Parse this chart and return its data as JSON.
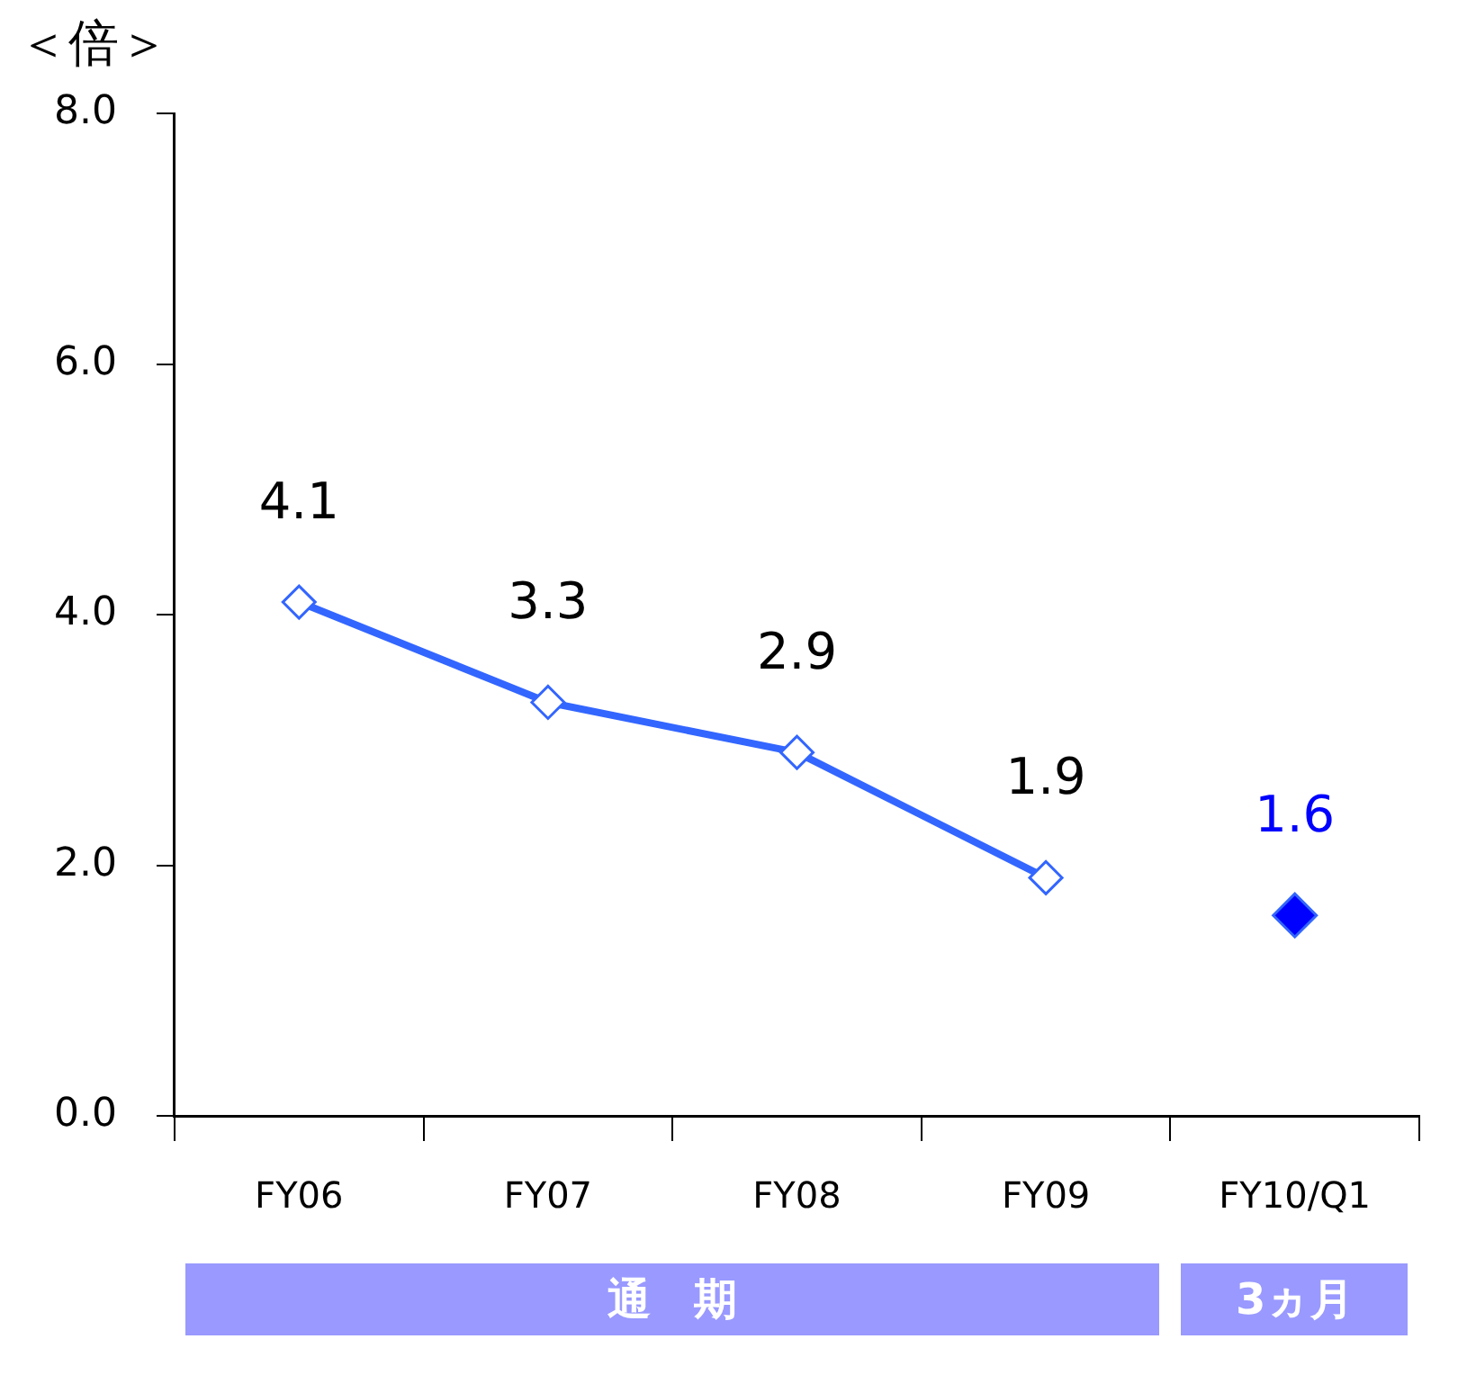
{
  "chart_data": {
    "type": "line",
    "ylabel": "＜倍＞",
    "categories": [
      "FY06",
      "FY07",
      "FY08",
      "FY09",
      "FY10/Q1"
    ],
    "series": [
      {
        "color": "#3366ff",
        "values": [
          4.1,
          3.3,
          2.9,
          1.9,
          null
        ]
      },
      {
        "type": "scatter",
        "color": "#0000ff",
        "values": [
          null,
          null,
          null,
          null,
          1.6
        ]
      }
    ],
    "ylim": [
      0,
      8
    ],
    "yticks": [
      {
        "value": 0,
        "label": "0.0"
      },
      {
        "value": 2,
        "label": "2.0"
      },
      {
        "value": 4,
        "label": "4.0"
      },
      {
        "value": 6,
        "label": "6.0"
      },
      {
        "value": 8,
        "label": "8.0"
      }
    ],
    "marker": "diamond",
    "data_labels": true,
    "grid": false,
    "legend": false,
    "annotations": [
      "通　期",
      "3ヵ月"
    ]
  }
}
